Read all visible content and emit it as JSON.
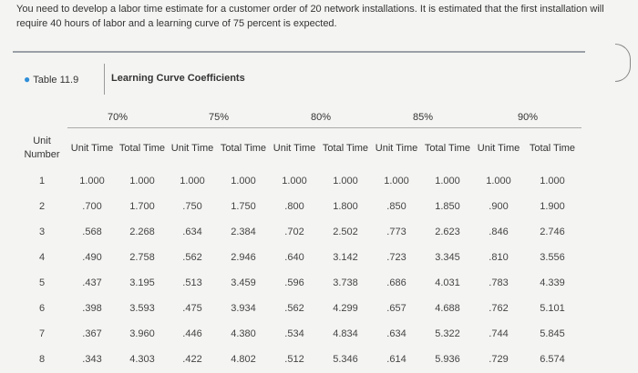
{
  "prompt": "You need to develop a labor time estimate for a customer order of 20 network installations. It is estimated that the first installation will require 40 hours of labor and a learning curve of 75 percent is expected.",
  "table_tag": "Table 11.9",
  "table_caption": "Learning Curve Coefficients",
  "groups": [
    "70%",
    "75%",
    "80%",
    "85%",
    "90%"
  ],
  "headers": [
    "Unit Number",
    "Unit Time",
    "Total Time",
    "Unit Time",
    "Total Time",
    "Unit Time",
    "Total Time",
    "Unit Time",
    "Total Time",
    "Unit Time",
    "Total Time"
  ],
  "rows": [
    [
      "1",
      "1.000",
      "1.000",
      "1.000",
      "1.000",
      "1.000",
      "1.000",
      "1.000",
      "1.000",
      "1.000",
      "1.000"
    ],
    [
      "2",
      ".700",
      "1.700",
      ".750",
      "1.750",
      ".800",
      "1.800",
      ".850",
      "1.850",
      ".900",
      "1.900"
    ],
    [
      "3",
      ".568",
      "2.268",
      ".634",
      "2.384",
      ".702",
      "2.502",
      ".773",
      "2.623",
      ".846",
      "2.746"
    ],
    [
      "4",
      ".490",
      "2.758",
      ".562",
      "2.946",
      ".640",
      "3.142",
      ".723",
      "3.345",
      ".810",
      "3.556"
    ],
    [
      "5",
      ".437",
      "3.195",
      ".513",
      "3.459",
      ".596",
      "3.738",
      ".686",
      "4.031",
      ".783",
      "4.339"
    ],
    [
      "6",
      ".398",
      "3.593",
      ".475",
      "3.934",
      ".562",
      "4.299",
      ".657",
      "4.688",
      ".762",
      "5.101"
    ],
    [
      "7",
      ".367",
      "3.960",
      ".446",
      "4.380",
      ".534",
      "4.834",
      ".634",
      "5.322",
      ".744",
      "5.845"
    ],
    [
      "8",
      ".343",
      "4.303",
      ".422",
      "4.802",
      ".512",
      "5.346",
      ".614",
      "5.936",
      ".729",
      "6.574"
    ]
  ],
  "colors": {
    "bullet": "#2f8fd8",
    "rule": "#9aa0a6"
  }
}
